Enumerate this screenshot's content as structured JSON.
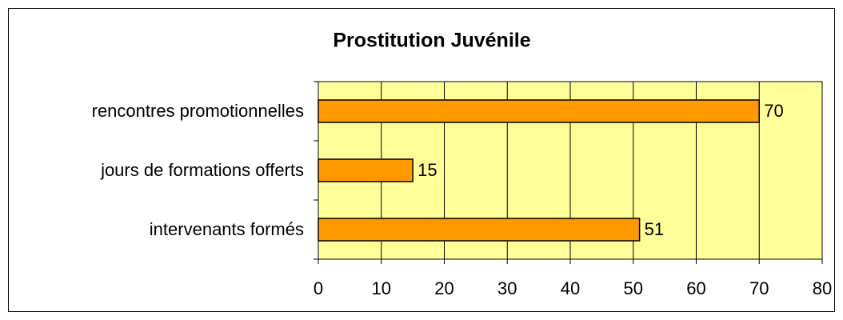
{
  "chart_data": {
    "type": "bar",
    "orientation": "horizontal",
    "title": "Prostitution Juvénile",
    "categories": [
      "rencontres promotionnelles",
      "jours de formations offerts",
      "intervenants formés"
    ],
    "values": [
      70,
      15,
      51
    ],
    "color": "#ff9900",
    "plot_background": "#ffff99",
    "xlim": [
      0,
      80
    ],
    "xticks": [
      0,
      10,
      20,
      30,
      40,
      50,
      60,
      70,
      80
    ],
    "grid": true
  }
}
